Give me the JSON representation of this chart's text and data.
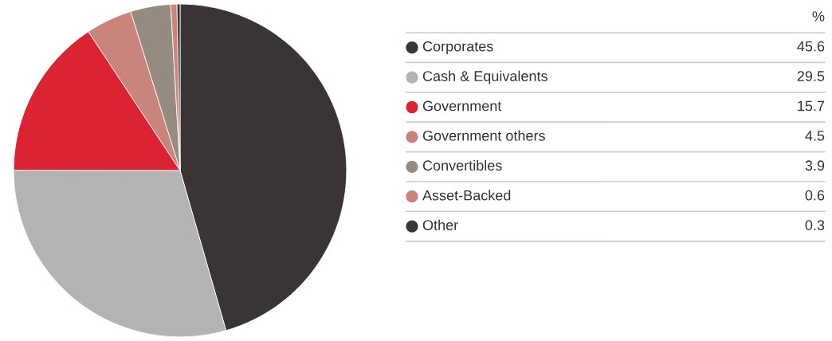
{
  "chart_data": {
    "type": "pie",
    "categories": [
      "Corporates",
      "Cash & Equivalents",
      "Government",
      "Government others",
      "Convertibles",
      "Asset-Backed",
      "Other"
    ],
    "values": [
      45.6,
      29.5,
      15.7,
      4.5,
      3.9,
      0.6,
      0.3
    ],
    "colors": [
      "#3a3435",
      "#b3b3b3",
      "#dc2331",
      "#c9847c",
      "#958b80",
      "#c9847c",
      "#3a3435"
    ],
    "legend_title": "%",
    "legend": "right",
    "data_labels": true
  }
}
